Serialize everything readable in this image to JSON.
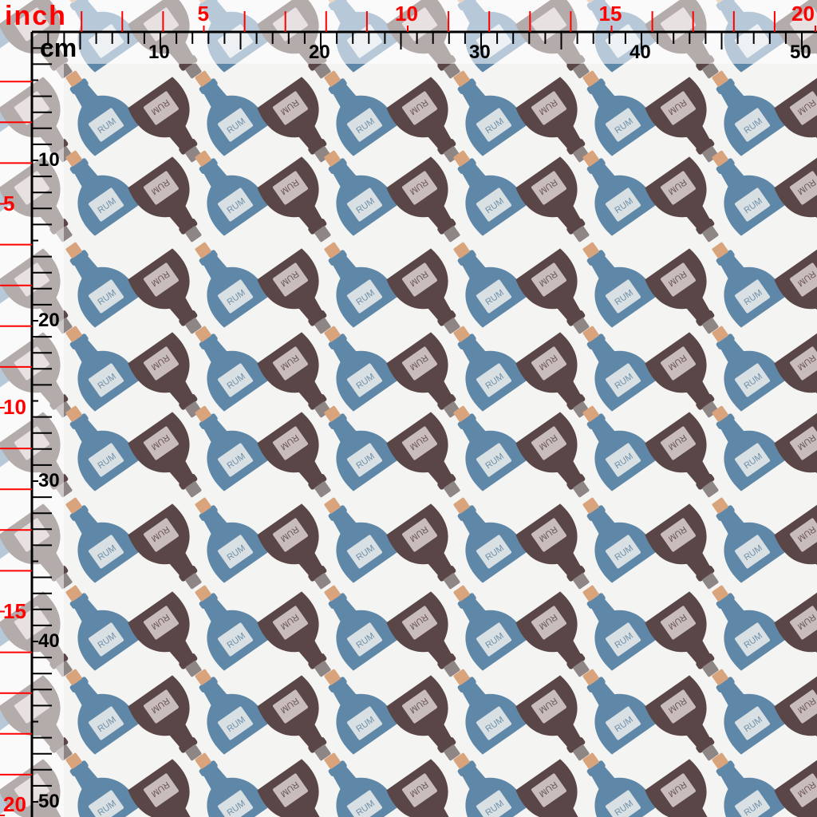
{
  "rulers": {
    "inch_unit": "inch",
    "cm_unit": "cm",
    "inch_labels_top": [
      "5",
      "10",
      "15",
      "20"
    ],
    "cm_labels_top": [
      "10",
      "20",
      "30",
      "40",
      "50"
    ],
    "inch_labels_left": [
      "5",
      "10",
      "15",
      "20"
    ],
    "cm_labels_left": [
      "10",
      "20",
      "30",
      "40",
      "50"
    ],
    "inch_color": "#ff0000",
    "cm_color": "#000000"
  },
  "fabric": {
    "motif": "rum-bottle",
    "bottle_label": "RUM",
    "colors": {
      "blue_bottle": "#5f88a8",
      "brown_bottle": "#5a4646",
      "cork": "#d9a37c",
      "label": "#d9e0e4",
      "background": "#f4f4f3"
    }
  }
}
